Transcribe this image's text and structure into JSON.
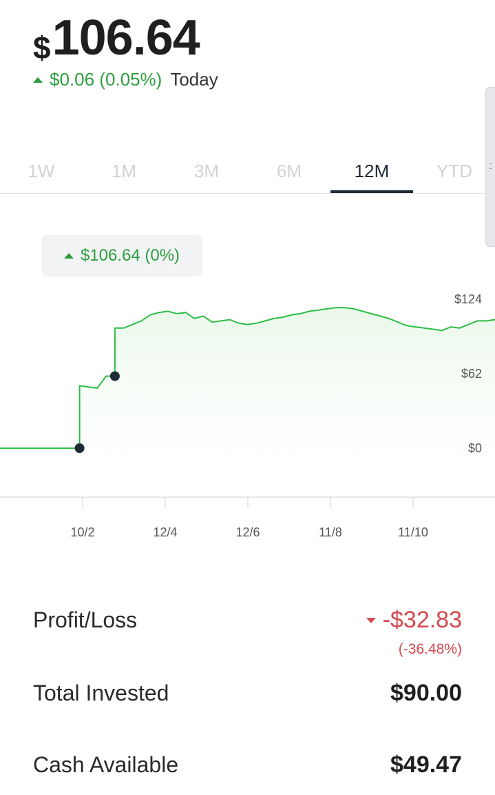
{
  "balance": {
    "currency": "$",
    "amount": "106.64"
  },
  "today": {
    "change": "$0.06 (0.05%)",
    "label": "Today"
  },
  "tabs": [
    {
      "label": "1W",
      "active": false
    },
    {
      "label": "1M",
      "active": false
    },
    {
      "label": "3M",
      "active": false
    },
    {
      "label": "6M",
      "active": false
    },
    {
      "label": "12M",
      "active": true
    },
    {
      "label": "YTD",
      "active": false
    }
  ],
  "tooltip": {
    "text": "$106.64 (0%)"
  },
  "chart_data": {
    "type": "line",
    "y_ticks": [
      "$124",
      "$62",
      "$0"
    ],
    "x_ticks": [
      "10/2",
      "12/4",
      "12/6",
      "11/8",
      "11/10"
    ],
    "ylim": [
      0,
      124
    ],
    "grid": false,
    "series": [
      {
        "values": [
          0,
          0,
          0,
          0,
          0,
          0,
          0,
          0,
          0,
          52,
          51,
          50,
          60,
          100,
          100,
          103,
          106,
          111,
          113,
          114,
          112,
          113,
          108,
          110,
          105,
          106,
          107,
          104,
          103,
          104,
          106,
          108,
          109,
          111,
          112,
          114,
          115,
          116,
          117,
          117,
          116,
          114,
          112,
          110,
          108,
          105,
          102,
          101,
          100,
          99,
          98,
          101,
          100,
          103,
          106,
          106,
          107
        ]
      }
    ],
    "markers": [
      "first deposit",
      "second deposit"
    ],
    "line_color": "#2ebd46",
    "area_color": "#eefaee"
  },
  "stats": {
    "profit_loss": {
      "label": "Profit/Loss",
      "value": "-$32.83",
      "percent": "(-36.48%)"
    },
    "total_invested": {
      "label": "Total Invested",
      "value": "$90.00"
    },
    "cash_available": {
      "label": "Cash Available",
      "value": "$49.47"
    }
  }
}
